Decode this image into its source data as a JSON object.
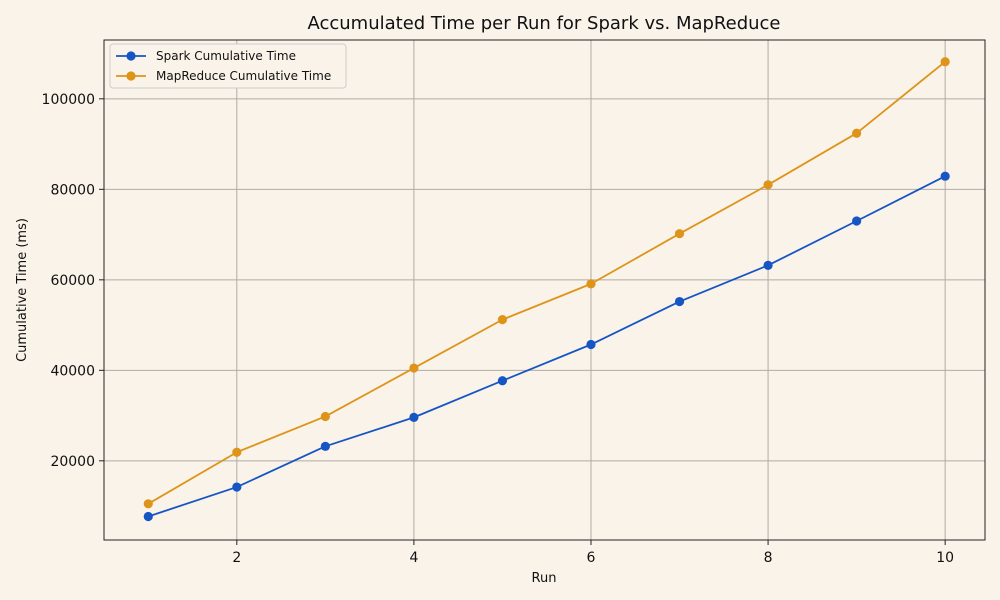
{
  "chart_data": {
    "type": "line",
    "title": "Accumulated Time per Run for Spark vs. MapReduce",
    "xlabel": "Run",
    "ylabel": "Cumulative Time (ms)",
    "x": [
      1,
      2,
      3,
      4,
      5,
      6,
      7,
      8,
      9,
      10
    ],
    "xlim": [
      0.5,
      10.45
    ],
    "ylim": [
      2500,
      113000
    ],
    "xticks": [
      2,
      4,
      6,
      8,
      10
    ],
    "yticks": [
      20000,
      40000,
      60000,
      80000,
      100000
    ],
    "grid": true,
    "legend": "top-left",
    "series": [
      {
        "name": "Spark Cumulative Time",
        "color": "#1555c4",
        "values": [
          7700,
          14200,
          23200,
          29600,
          37700,
          45700,
          55200,
          63200,
          73000,
          82900
        ]
      },
      {
        "name": "MapReduce Cumulative Time",
        "color": "#dd9419",
        "values": [
          10500,
          21900,
          29800,
          40500,
          51200,
          59100,
          70200,
          81000,
          92400,
          108200
        ]
      }
    ]
  }
}
